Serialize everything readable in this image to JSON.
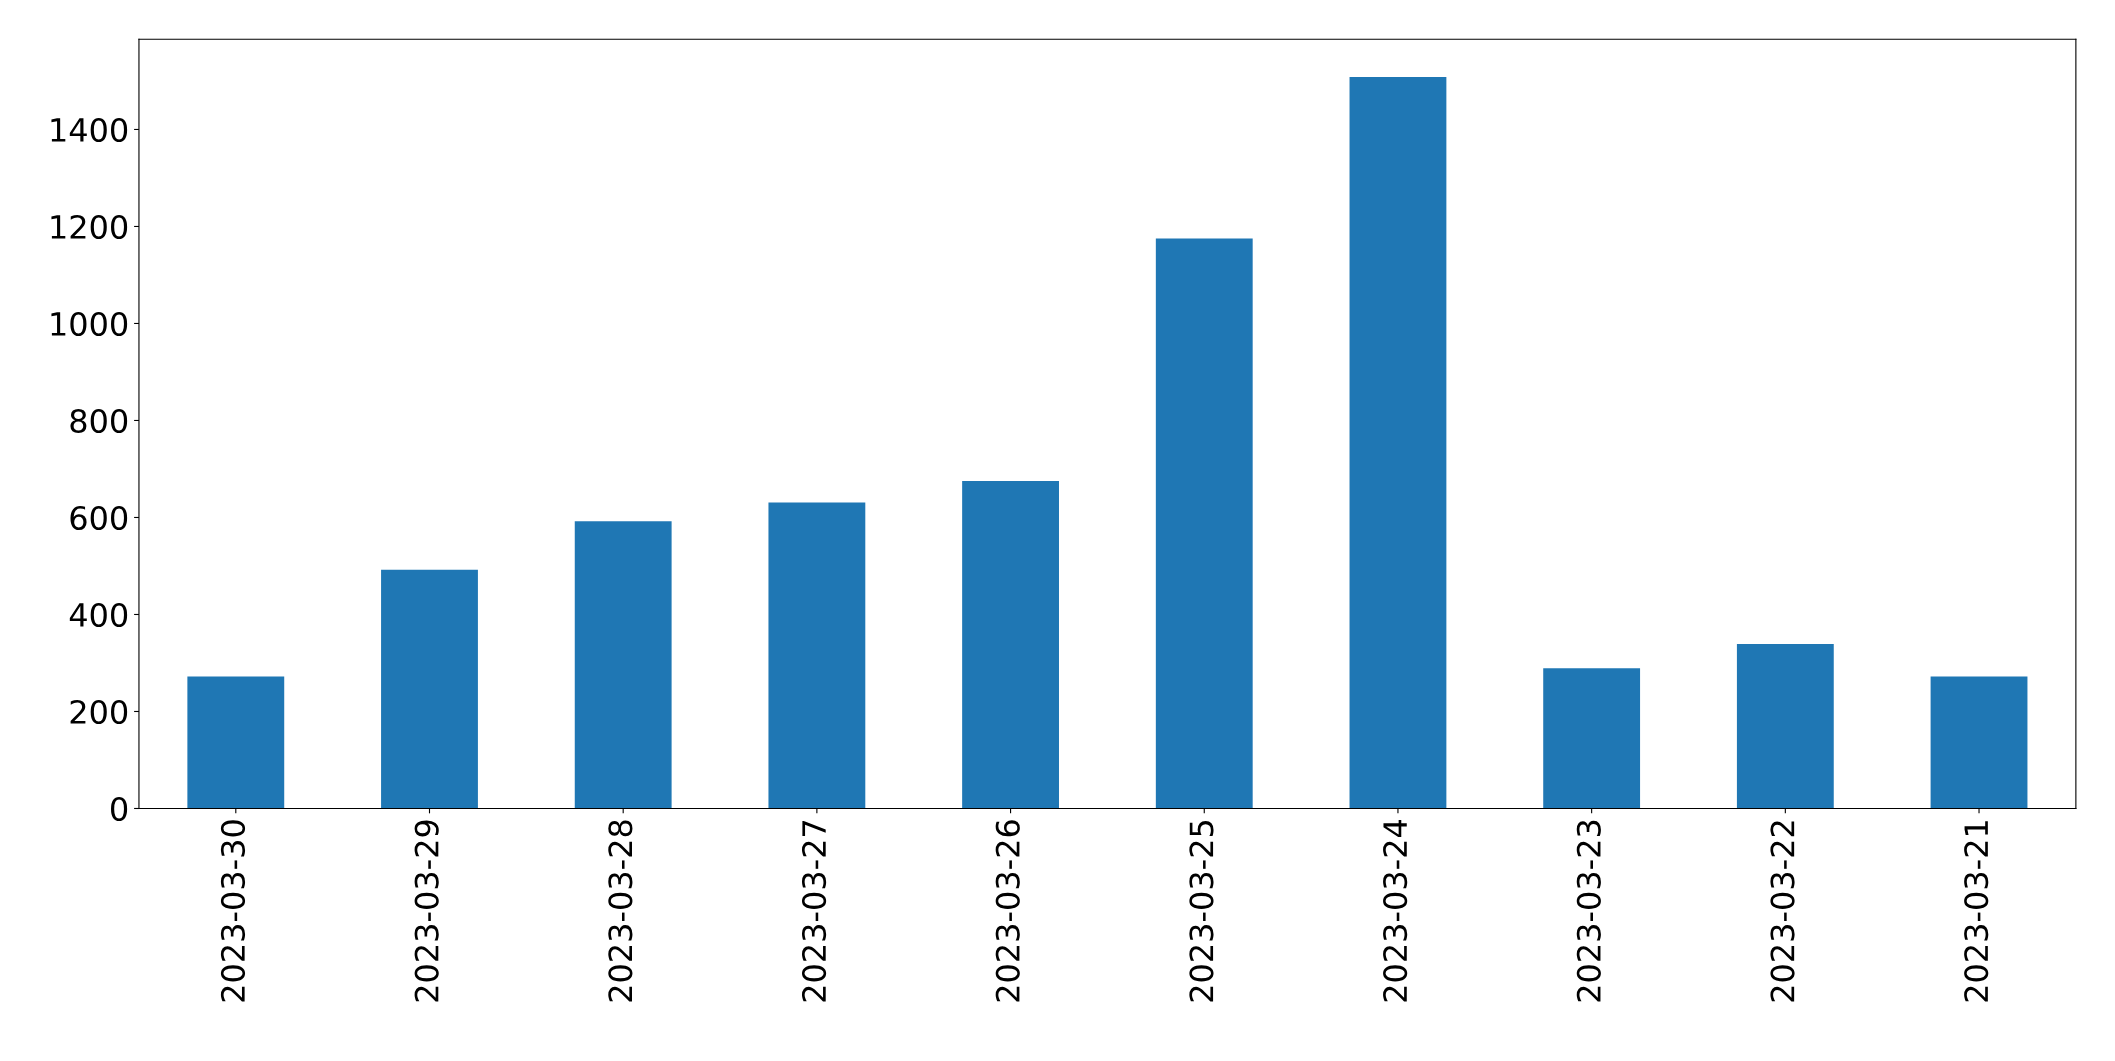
{
  "chart_data": {
    "type": "bar",
    "categories": [
      "2023-03-30",
      "2023-03-29",
      "2023-03-28",
      "2023-03-27",
      "2023-03-26",
      "2023-03-25",
      "2023-03-24",
      "2023-03-23",
      "2023-03-22",
      "2023-03-21"
    ],
    "values": [
      272,
      492,
      592,
      631,
      675,
      1175,
      1508,
      289,
      339,
      272
    ],
    "color": "#1f77b4",
    "ylim": [
      0,
      1586
    ],
    "yticks": [
      0,
      200,
      400,
      600,
      800,
      1000,
      1200,
      1400
    ],
    "grid": false,
    "legend": false
  }
}
